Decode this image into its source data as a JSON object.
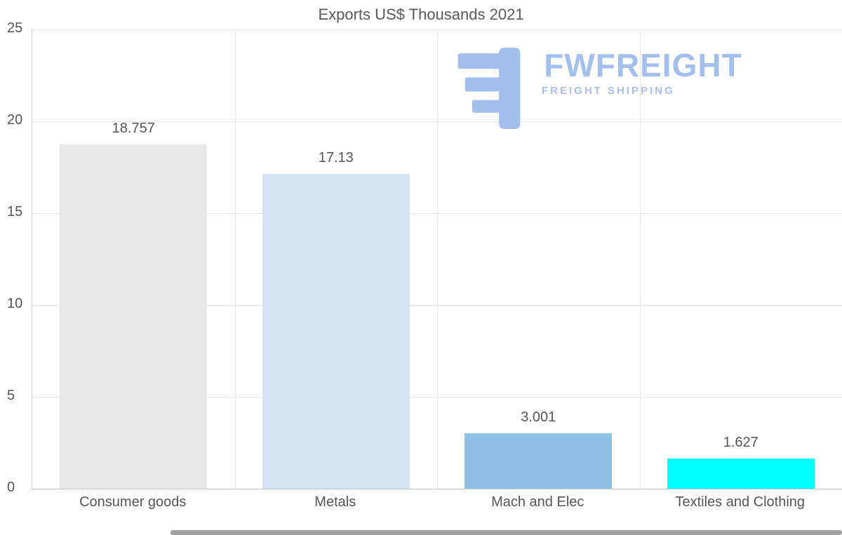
{
  "title": "Exports US$ Thousands 2021",
  "logo": {
    "brand": "FWFREIGHT",
    "tagline": "FREIGHT SHIPPING",
    "color": "#a3bfec"
  },
  "chart_data": {
    "type": "bar",
    "title": "Exports US$ Thousands 2021",
    "categories": [
      "Consumer goods",
      "Metals",
      "Mach and Elec",
      "Textiles and Clothing"
    ],
    "values": [
      18.757,
      17.13,
      3.001,
      1.627
    ],
    "value_labels": [
      "18.757",
      "17.13",
      "3.001",
      "1.627"
    ],
    "bar_colors": [
      "#e8e8e8",
      "#d4e4f7",
      "#8fc0e6",
      "#00ffff"
    ],
    "xlabel": "",
    "ylabel": "",
    "ylim": [
      0,
      25
    ],
    "yticks": [
      0,
      5,
      10,
      15,
      20,
      25
    ],
    "grid": true,
    "legend": "none",
    "text_color": "#555555",
    "grid_color": "#e4e4e4",
    "axis_color": "#c4c4c4"
  }
}
